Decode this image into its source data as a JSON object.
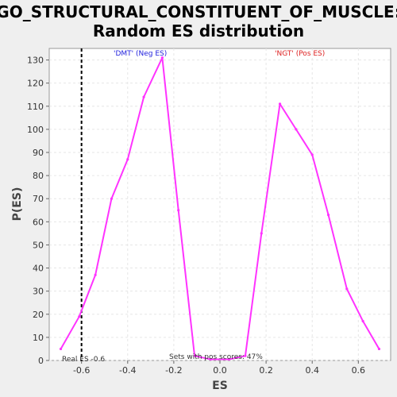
{
  "chart_data": {
    "type": "line",
    "title": "GO_STRUCTURAL_CONSTITUENT_OF_MUSCLE:",
    "subtitle": "Random ES distribution",
    "xlabel": "ES",
    "ylabel": "P(ES)",
    "xlim": [
      -0.74,
      0.74
    ],
    "ylim": [
      0,
      135
    ],
    "xticks": [
      "-0.6",
      "-0.4",
      "-0.2",
      "0.0",
      "0.2",
      "0.4",
      "0.6"
    ],
    "xtick_values": [
      -0.6,
      -0.4,
      -0.2,
      0.0,
      0.2,
      0.4,
      0.6
    ],
    "yticks": [
      "0",
      "10",
      "20",
      "30",
      "40",
      "50",
      "60",
      "70",
      "80",
      "90",
      "100",
      "110",
      "120",
      "130"
    ],
    "ytick_values": [
      0,
      10,
      20,
      30,
      40,
      50,
      60,
      70,
      80,
      90,
      100,
      110,
      120,
      130
    ],
    "grid": true,
    "series": [
      {
        "color": "#ff33ff",
        "x": [
          -0.69,
          -0.61,
          -0.54,
          -0.47,
          -0.4,
          -0.33,
          -0.25,
          -0.18,
          -0.11,
          -0.04,
          0.04,
          0.11,
          0.18,
          0.26,
          0.33,
          0.4,
          0.47,
          0.55,
          0.62,
          0.69
        ],
        "y": [
          5,
          19,
          37,
          70,
          87,
          114,
          131,
          65,
          2,
          0.5,
          0.5,
          2,
          55,
          111,
          100,
          89,
          63,
          31,
          17,
          5
        ]
      }
    ],
    "vline": {
      "x": -0.6,
      "style": "dashed",
      "color": "#000000"
    },
    "annotations": {
      "neg_label": "'DMT' (Neg ES)",
      "neg_color": "#2222dd",
      "pos_label": "'NGT' (Pos ES)",
      "pos_color": "#dd2222",
      "real_es": "Real ES -0.6",
      "pos_scores": "Sets with pos scores: 47%"
    }
  }
}
